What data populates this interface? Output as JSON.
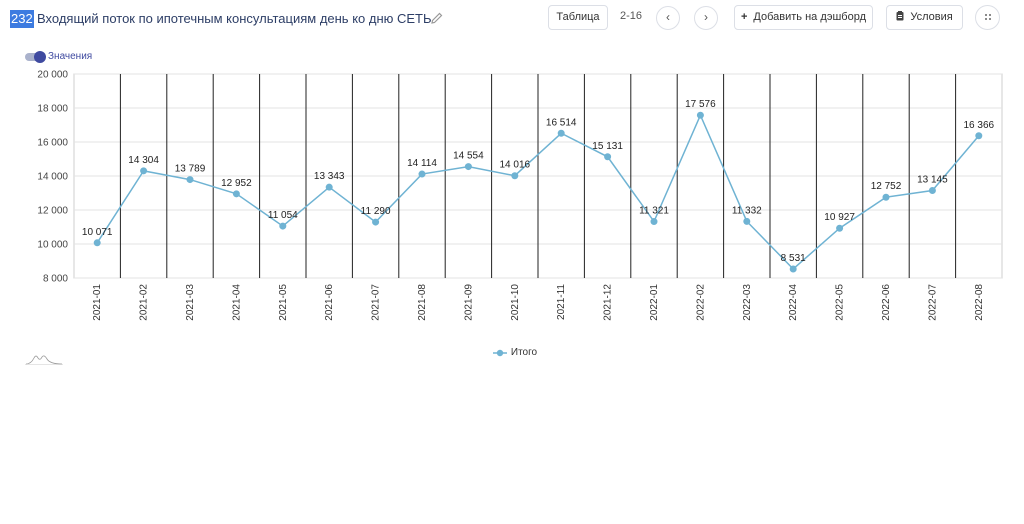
{
  "header": {
    "id": "232",
    "title": "Входящий поток по ипотечным консультациям день ко дню  СЕТЬ",
    "table_label": "Таблица",
    "pages": "2-16",
    "prev_glyph": "‹",
    "next_glyph": "›",
    "add_label": "Добавить на дэшборд",
    "add_icon": "+",
    "conditions_label": "Условия",
    "more_glyph": "⋮⋮",
    "icons": [
      "pencil-icon",
      "clipboard-icon",
      "drag-handle-icon"
    ]
  },
  "toggle": {
    "label": "Значения",
    "on": true
  },
  "legend": {
    "items": [
      "Итого"
    ]
  },
  "colors": {
    "line": "#6fb3d3",
    "grid": "#e3e3e3",
    "vline": "#222222"
  },
  "chart_data": {
    "type": "line",
    "title": "",
    "xlabel": "",
    "ylabel": "",
    "ylim": [
      8000,
      20000
    ],
    "yticks": [
      "8 000",
      "10 000",
      "12 000",
      "14 000",
      "16 000",
      "18 000",
      "20 000"
    ],
    "ytick_values": [
      8000,
      10000,
      12000,
      14000,
      16000,
      18000,
      20000
    ],
    "grid": true,
    "legend_position": "bottom",
    "categories": [
      "2021-01",
      "2021-02",
      "2021-03",
      "2021-04",
      "2021-05",
      "2021-06",
      "2021-07",
      "2021-08",
      "2021-09",
      "2021-10",
      "2021-11",
      "2021-12",
      "2022-01",
      "2022-02",
      "2022-03",
      "2022-04",
      "2022-05",
      "2022-06",
      "2022-07",
      "2022-08"
    ],
    "series": [
      {
        "name": "Итого",
        "values": [
          10071,
          14304,
          13789,
          12952,
          11054,
          13343,
          11290,
          14114,
          14554,
          14016,
          16514,
          15131,
          11321,
          17576,
          11332,
          8531,
          10927,
          12752,
          13145,
          16366
        ],
        "labels": [
          "10 071",
          "14 304",
          "13 789",
          "12 952",
          "11 054",
          "13 343",
          "11 290",
          "14 114",
          "14 554",
          "14 016",
          "16 514",
          "15 131",
          "11 321",
          "17 576",
          "11 332",
          "8 531",
          "10 927",
          "12 752",
          "13 145",
          "16 366"
        ]
      }
    ]
  }
}
